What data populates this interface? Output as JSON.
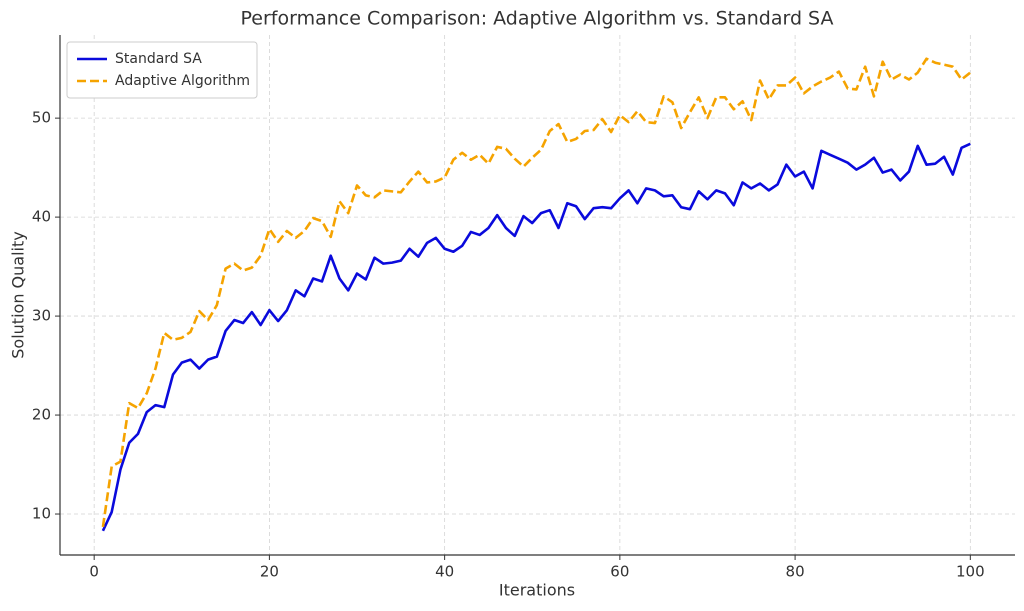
{
  "chart_data": {
    "type": "line",
    "title": "Performance Comparison: Adaptive Algorithm vs. Standard SA",
    "x_label": "Iterations",
    "y_label": "Solution Quality",
    "x": [
      1,
      2,
      3,
      4,
      5,
      6,
      7,
      8,
      9,
      10,
      11,
      12,
      13,
      14,
      15,
      16,
      17,
      18,
      19,
      20,
      21,
      22,
      23,
      24,
      25,
      26,
      27,
      28,
      29,
      30,
      31,
      32,
      33,
      34,
      35,
      36,
      37,
      38,
      39,
      40,
      41,
      42,
      43,
      44,
      45,
      46,
      47,
      48,
      49,
      50,
      51,
      52,
      53,
      54,
      55,
      56,
      57,
      58,
      59,
      60,
      61,
      62,
      63,
      64,
      65,
      66,
      67,
      68,
      69,
      70,
      71,
      72,
      73,
      74,
      75,
      76,
      77,
      78,
      79,
      80,
      81,
      82,
      83,
      84,
      85,
      86,
      87,
      88,
      89,
      90,
      91,
      92,
      93,
      94,
      95,
      96,
      97,
      98,
      99,
      100
    ],
    "series": [
      {
        "name": "Standard SA",
        "color": "#0a0adc",
        "dash": false,
        "values": [
          8.3,
          10.2,
          14.5,
          17.2,
          18.1,
          20.3,
          21.0,
          20.8,
          24.1,
          25.3,
          25.6,
          24.7,
          25.6,
          25.9,
          28.5,
          29.6,
          29.3,
          30.4,
          29.1,
          30.6,
          29.5,
          30.6,
          32.6,
          32.0,
          33.8,
          33.5,
          36.1,
          33.8,
          32.6,
          34.3,
          33.7,
          35.9,
          35.3,
          35.4,
          35.6,
          36.8,
          36.0,
          37.4,
          37.9,
          36.8,
          36.5,
          37.1,
          38.5,
          38.2,
          38.9,
          40.2,
          38.9,
          38.1,
          40.1,
          39.4,
          40.4,
          40.7,
          38.9,
          41.4,
          41.1,
          39.8,
          40.9,
          41.0,
          40.9,
          41.9,
          42.7,
          41.4,
          42.9,
          42.7,
          42.1,
          42.2,
          41.0,
          40.8,
          42.6,
          41.8,
          42.7,
          42.4,
          41.2,
          43.5,
          42.9,
          43.4,
          42.7,
          43.3,
          45.3,
          44.1,
          44.6,
          42.9,
          46.7,
          46.3,
          45.9,
          45.5,
          44.8,
          45.3,
          46.0,
          44.5,
          44.8,
          43.7,
          44.6,
          47.2,
          45.3,
          45.4,
          46.1,
          44.3,
          47.0,
          47.4
        ]
      },
      {
        "name": "Adaptive Algorithm",
        "color": "#f5a300",
        "dash": true,
        "values": [
          8.7,
          14.8,
          15.3,
          21.2,
          20.7,
          22.2,
          24.7,
          28.3,
          27.6,
          27.8,
          28.4,
          30.5,
          29.6,
          31.1,
          34.8,
          35.3,
          34.6,
          34.9,
          36.1,
          38.8,
          37.5,
          38.6,
          37.9,
          38.6,
          39.9,
          39.6,
          38.0,
          41.6,
          40.4,
          43.2,
          42.2,
          42.0,
          42.7,
          42.6,
          42.5,
          43.6,
          44.6,
          43.5,
          43.6,
          44.0,
          45.8,
          46.5,
          45.8,
          46.3,
          45.4,
          47.1,
          46.9,
          45.9,
          45.1,
          46.0,
          46.8,
          48.7,
          49.4,
          47.6,
          47.9,
          48.7,
          48.8,
          49.9,
          48.6,
          50.3,
          49.6,
          50.7,
          49.6,
          49.5,
          52.2,
          51.6,
          49.0,
          50.6,
          52.1,
          50.0,
          52.1,
          52.1,
          50.9,
          51.7,
          49.8,
          53.8,
          51.9,
          53.3,
          53.3,
          54.1,
          52.5,
          53.2,
          53.7,
          54.1,
          54.7,
          53.0,
          52.9,
          55.2,
          52.2,
          55.7,
          53.9,
          54.4,
          53.9,
          54.6,
          56.0,
          55.6,
          55.4,
          55.2,
          53.9,
          54.6
        ]
      }
    ],
    "xlim": [
      -3.9,
      105.1
    ],
    "ylim": [
      5.86,
      58.4
    ],
    "xticks": [
      0,
      20,
      40,
      60,
      80,
      100
    ],
    "yticks": [
      10,
      20,
      30,
      40,
      50
    ],
    "grid": true,
    "legend": "upper left"
  }
}
